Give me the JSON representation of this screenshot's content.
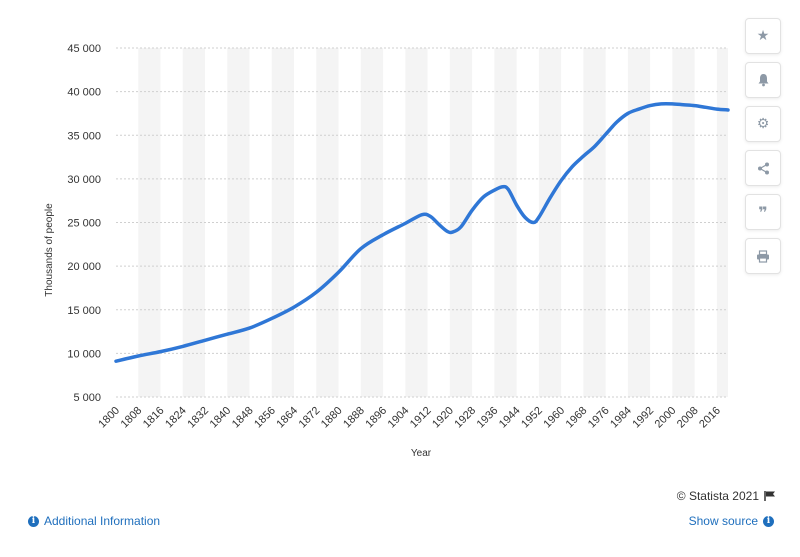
{
  "chart_data": {
    "type": "line",
    "xlabel": "Year",
    "ylabel": "Thousands of people",
    "xlim": [
      1800,
      2020
    ],
    "ylim": [
      5000,
      45000
    ],
    "y_ticks": [
      5000,
      10000,
      15000,
      20000,
      25000,
      30000,
      35000,
      40000,
      45000
    ],
    "y_tick_labels": [
      "5 000",
      "10 000",
      "15 000",
      "20 000",
      "25 000",
      "30 000",
      "35 000",
      "40 000",
      "45 000"
    ],
    "x_ticks": [
      1800,
      1808,
      1816,
      1824,
      1832,
      1840,
      1848,
      1856,
      1864,
      1872,
      1880,
      1888,
      1896,
      1904,
      1912,
      1920,
      1928,
      1936,
      1944,
      1952,
      1960,
      1968,
      1976,
      1984,
      1992,
      2000,
      2008,
      2016
    ],
    "x_tick_labels": [
      "1800",
      "1808",
      "1816",
      "1824",
      "1832",
      "1840",
      "1848",
      "1856",
      "1864",
      "1872",
      "1880",
      "1888",
      "1896",
      "1904",
      "1912",
      "1920",
      "1928",
      "1936",
      "1944",
      "1952",
      "1960",
      "1968",
      "1976",
      "1984",
      "1992",
      "2000",
      "2008",
      "2016"
    ],
    "grid": true,
    "line_color": "#2f77d6",
    "series": [
      {
        "x": [
          1800,
          1808,
          1816,
          1824,
          1832,
          1840,
          1848,
          1856,
          1864,
          1872,
          1880,
          1888,
          1896,
          1904,
          1910,
          1913,
          1916,
          1919,
          1921,
          1924,
          1928,
          1932,
          1936,
          1939,
          1941,
          1944,
          1947,
          1950,
          1952,
          1956,
          1960,
          1964,
          1968,
          1972,
          1976,
          1980,
          1984,
          1988,
          1992,
          1996,
          2000,
          2004,
          2008,
          2012,
          2016,
          2020
        ],
        "y": [
          9100,
          9700,
          10200,
          10800,
          11500,
          12200,
          12900,
          14000,
          15300,
          17000,
          19300,
          22000,
          23600,
          24900,
          25900,
          25700,
          24800,
          24000,
          23900,
          24500,
          26400,
          27900,
          28700,
          29100,
          28800,
          27000,
          25600,
          25000,
          25600,
          27800,
          29800,
          31400,
          32600,
          33700,
          35100,
          36500,
          37500,
          38000,
          38400,
          38600,
          38600,
          38500,
          38400,
          38200,
          38000,
          37900
        ]
      }
    ]
  },
  "footer": {
    "credit": "© Statista 2021",
    "additional_info": "Additional Information",
    "show_source": "Show source"
  },
  "toolbar": {
    "icons": [
      "star-icon",
      "bell-icon",
      "gear-icon",
      "share-icon",
      "quote-icon",
      "print-icon"
    ]
  }
}
